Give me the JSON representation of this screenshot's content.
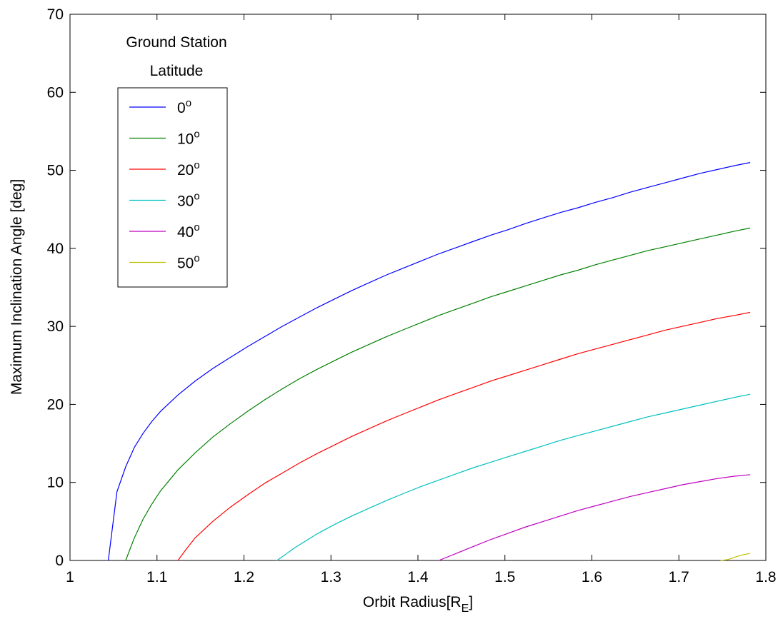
{
  "chart_data": {
    "type": "line",
    "xlabel": "Orbit Radius[R",
    "xlabel_sub": "E",
    "xlabel_end": "]",
    "ylabel": "Maximum Inclination Angle [deg]",
    "xlim": [
      1,
      1.8
    ],
    "ylim": [
      0,
      70
    ],
    "xticks": [
      1,
      1.1,
      1.2,
      1.3,
      1.4,
      1.5,
      1.6,
      1.7,
      1.8
    ],
    "xtick_labels": [
      "1",
      "1.1",
      "1.2",
      "1.3",
      "1.4",
      "1.5",
      "1.6",
      "1.7",
      "1.8"
    ],
    "yticks": [
      0,
      10,
      20,
      30,
      40,
      50,
      60,
      70
    ],
    "ytick_labels": [
      "0",
      "10",
      "20",
      "30",
      "40",
      "50",
      "60",
      "70"
    ],
    "grid": false,
    "legend": {
      "title_line1": "Ground Station",
      "title_line2": "Latitude",
      "placement": "top-left"
    },
    "series": [
      {
        "name": "0",
        "color": "#0000ff",
        "x": [
          1.044,
          1.054,
          1.064,
          1.074,
          1.084,
          1.094,
          1.104,
          1.124,
          1.144,
          1.164,
          1.184,
          1.204,
          1.224,
          1.244,
          1.264,
          1.284,
          1.304,
          1.324,
          1.344,
          1.364,
          1.384,
          1.404,
          1.424,
          1.444,
          1.464,
          1.484,
          1.504,
          1.524,
          1.544,
          1.564,
          1.584,
          1.604,
          1.624,
          1.644,
          1.664,
          1.684,
          1.704,
          1.724,
          1.744,
          1.764,
          1.782
        ],
        "y": [
          0,
          8.8,
          12.0,
          14.5,
          16.3,
          17.8,
          19.1,
          21.2,
          23.0,
          24.6,
          26.0,
          27.4,
          28.7,
          30.0,
          31.2,
          32.4,
          33.5,
          34.6,
          35.6,
          36.6,
          37.5,
          38.4,
          39.3,
          40.1,
          40.9,
          41.7,
          42.4,
          43.2,
          43.9,
          44.6,
          45.2,
          45.9,
          46.5,
          47.2,
          47.8,
          48.4,
          49.0,
          49.6,
          50.1,
          50.6,
          51.0
        ]
      },
      {
        "name": "10",
        "color": "#008000",
        "x": [
          1.064,
          1.074,
          1.084,
          1.094,
          1.104,
          1.124,
          1.144,
          1.164,
          1.184,
          1.204,
          1.224,
          1.244,
          1.264,
          1.284,
          1.304,
          1.324,
          1.344,
          1.364,
          1.384,
          1.404,
          1.424,
          1.444,
          1.464,
          1.484,
          1.504,
          1.524,
          1.544,
          1.564,
          1.584,
          1.604,
          1.624,
          1.644,
          1.664,
          1.684,
          1.704,
          1.724,
          1.744,
          1.764,
          1.782
        ],
        "y": [
          0,
          2.9,
          5.3,
          7.2,
          8.9,
          11.6,
          13.8,
          15.8,
          17.5,
          19.1,
          20.6,
          22.0,
          23.3,
          24.5,
          25.6,
          26.7,
          27.7,
          28.7,
          29.6,
          30.5,
          31.4,
          32.2,
          33.0,
          33.8,
          34.5,
          35.2,
          35.9,
          36.6,
          37.2,
          37.9,
          38.5,
          39.1,
          39.7,
          40.2,
          40.7,
          41.2,
          41.7,
          42.2,
          42.6
        ]
      },
      {
        "name": "20",
        "color": "#ff0000",
        "x": [
          1.124,
          1.134,
          1.144,
          1.164,
          1.184,
          1.204,
          1.224,
          1.244,
          1.264,
          1.284,
          1.304,
          1.324,
          1.344,
          1.364,
          1.384,
          1.404,
          1.424,
          1.444,
          1.464,
          1.484,
          1.504,
          1.524,
          1.544,
          1.564,
          1.584,
          1.604,
          1.624,
          1.644,
          1.664,
          1.684,
          1.704,
          1.724,
          1.744,
          1.764,
          1.782
        ],
        "y": [
          0,
          1.5,
          2.9,
          5.0,
          6.8,
          8.4,
          9.9,
          11.2,
          12.5,
          13.7,
          14.8,
          15.9,
          16.9,
          17.9,
          18.8,
          19.7,
          20.6,
          21.4,
          22.2,
          23.0,
          23.7,
          24.4,
          25.1,
          25.8,
          26.5,
          27.1,
          27.7,
          28.3,
          28.9,
          29.5,
          30.0,
          30.5,
          31.0,
          31.4,
          31.8
        ]
      },
      {
        "name": "30",
        "color": "#00bfbf",
        "x": [
          1.238,
          1.248,
          1.258,
          1.268,
          1.284,
          1.304,
          1.324,
          1.344,
          1.364,
          1.384,
          1.404,
          1.424,
          1.444,
          1.464,
          1.484,
          1.504,
          1.524,
          1.544,
          1.564,
          1.584,
          1.604,
          1.624,
          1.644,
          1.664,
          1.684,
          1.704,
          1.724,
          1.744,
          1.764,
          1.782
        ],
        "y": [
          0,
          0.8,
          1.6,
          2.3,
          3.4,
          4.6,
          5.7,
          6.7,
          7.7,
          8.6,
          9.5,
          10.3,
          11.1,
          11.9,
          12.6,
          13.3,
          14.0,
          14.7,
          15.4,
          16.0,
          16.6,
          17.2,
          17.8,
          18.4,
          18.9,
          19.4,
          19.9,
          20.4,
          20.9,
          21.3
        ]
      },
      {
        "name": "40",
        "color": "#bf00bf",
        "x": [
          1.424,
          1.444,
          1.464,
          1.484,
          1.504,
          1.524,
          1.544,
          1.564,
          1.584,
          1.604,
          1.624,
          1.644,
          1.664,
          1.684,
          1.704,
          1.724,
          1.744,
          1.764,
          1.782
        ],
        "y": [
          0,
          0.9,
          1.8,
          2.7,
          3.5,
          4.3,
          5.0,
          5.7,
          6.4,
          7.0,
          7.6,
          8.2,
          8.7,
          9.2,
          9.7,
          10.1,
          10.5,
          10.8,
          11.0
        ]
      },
      {
        "name": "50",
        "color": "#bfbf00",
        "x": [
          1.748,
          1.756,
          1.764,
          1.772,
          1.782
        ],
        "y": [
          0,
          0.1,
          0.4,
          0.7,
          0.9
        ]
      }
    ]
  }
}
